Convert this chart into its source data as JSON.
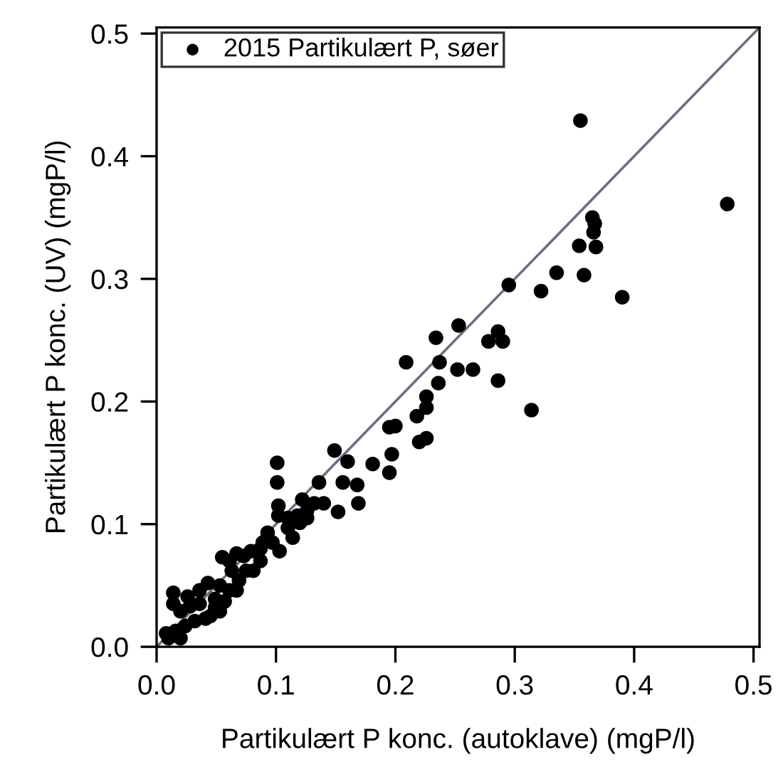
{
  "chart_data": {
    "type": "scatter",
    "xlabel": "Partikulært P konc. (autoklave) (mgP/l)",
    "ylabel": "Partikulært P konc. (UV) (mgP/l)",
    "xlim": [
      0,
      0.505
    ],
    "ylim": [
      0,
      0.505
    ],
    "xticks": [
      {
        "value": 0,
        "label": "0.0"
      },
      {
        "value": 0.1,
        "label": "0.1"
      },
      {
        "value": 0.2,
        "label": "0.2"
      },
      {
        "value": 0.3,
        "label": "0.3"
      },
      {
        "value": 0.4,
        "label": "0.4"
      },
      {
        "value": 0.5,
        "label": "0.5"
      }
    ],
    "yticks": [
      {
        "value": 0,
        "label": "0.0"
      },
      {
        "value": 0.1,
        "label": "0.1"
      },
      {
        "value": 0.2,
        "label": "0.2"
      },
      {
        "value": 0.3,
        "label": "0.3"
      },
      {
        "value": 0.4,
        "label": "0.4"
      },
      {
        "value": 0.5,
        "label": "0.5"
      }
    ],
    "grid": false,
    "legend": "top left",
    "marker": "circle",
    "series": [
      {
        "name": "2015 Partikulært P, søer",
        "color": "#000000",
        "x": [
          0.355,
          0.478,
          0.365,
          0.367,
          0.366,
          0.354,
          0.368,
          0.335,
          0.358,
          0.322,
          0.295,
          0.39,
          0.253,
          0.234,
          0.286,
          0.278,
          0.29,
          0.209,
          0.237,
          0.252,
          0.265,
          0.286,
          0.236,
          0.226,
          0.226,
          0.218,
          0.314,
          0.195,
          0.2,
          0.22,
          0.226,
          0.149,
          0.197,
          0.101,
          0.101,
          0.16,
          0.136,
          0.156,
          0.168,
          0.14,
          0.152,
          0.169,
          0.181,
          0.195,
          0.102,
          0.102,
          0.11,
          0.122,
          0.132,
          0.126,
          0.12,
          0.114,
          0.103,
          0.093,
          0.097,
          0.087,
          0.073,
          0.067,
          0.055,
          0.061,
          0.079,
          0.075,
          0.069,
          0.061,
          0.043,
          0.036,
          0.026,
          0.014,
          0.014,
          0.02,
          0.028,
          0.036,
          0.049,
          0.057,
          0.053,
          0.045,
          0.032,
          0.024,
          0.016,
          0.01,
          0.02,
          0.041,
          0.067,
          0.081,
          0.087,
          0.089,
          0.11,
          0.118,
          0.126,
          0.008,
          0.049,
          0.063,
          0.053
        ],
        "values": [
          0.429,
          0.361,
          0.35,
          0.345,
          0.338,
          0.327,
          0.326,
          0.305,
          0.303,
          0.29,
          0.295,
          0.285,
          0.262,
          0.252,
          0.257,
          0.249,
          0.249,
          0.232,
          0.232,
          0.226,
          0.226,
          0.217,
          0.215,
          0.204,
          0.195,
          0.188,
          0.193,
          0.179,
          0.18,
          0.167,
          0.17,
          0.16,
          0.157,
          0.15,
          0.134,
          0.151,
          0.134,
          0.134,
          0.132,
          0.117,
          0.11,
          0.117,
          0.149,
          0.142,
          0.115,
          0.107,
          0.105,
          0.12,
          0.117,
          0.111,
          0.101,
          0.089,
          0.078,
          0.093,
          0.085,
          0.07,
          0.074,
          0.076,
          0.073,
          0.07,
          0.078,
          0.062,
          0.054,
          0.046,
          0.052,
          0.046,
          0.041,
          0.044,
          0.035,
          0.029,
          0.033,
          0.035,
          0.039,
          0.037,
          0.029,
          0.025,
          0.021,
          0.017,
          0.013,
          0.007,
          0.007,
          0.023,
          0.046,
          0.062,
          0.08,
          0.085,
          0.097,
          0.107,
          0.105,
          0.011,
          0.032,
          0.062,
          0.05
        ]
      },
      {
        "type": "line",
        "color": "#6f6f80",
        "marker": "none",
        "x": [
          0,
          0.505
        ],
        "values": [
          0,
          0.505
        ]
      }
    ]
  }
}
